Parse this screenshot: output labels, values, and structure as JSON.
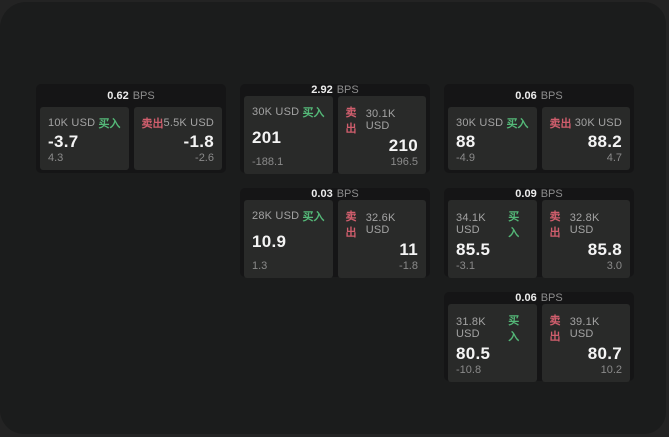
{
  "labels": {
    "bps_unit": "BPS",
    "buy": "买入",
    "sell": "卖出"
  },
  "colors": {
    "page": "#232323",
    "surface": "#1b1c1c",
    "card": "#151516",
    "cell": "#292a29",
    "buy_green": "#54b878",
    "sell_red": "#d05e6d"
  },
  "cards": [
    {
      "bps": "0.62",
      "buy": {
        "notional": "10K USD",
        "price": "-3.7",
        "change": "4.3"
      },
      "sell": {
        "notional": "5.5K USD",
        "price": "-1.8",
        "change": "-2.6"
      }
    },
    {
      "bps": "2.92",
      "buy": {
        "notional": "30K USD",
        "price": "201",
        "change": "-188.1"
      },
      "sell": {
        "notional": "30.1K USD",
        "price": "210",
        "change": "196.5"
      }
    },
    {
      "bps": "0.06",
      "buy": {
        "notional": "30K USD",
        "price": "88",
        "change": "-4.9"
      },
      "sell": {
        "notional": "30K USD",
        "price": "88.2",
        "change": "4.7"
      }
    },
    {
      "bps": "0.03",
      "buy": {
        "notional": "28K USD",
        "price": "10.9",
        "change": "1.3"
      },
      "sell": {
        "notional": "32.6K USD",
        "price": "11",
        "change": "-1.8"
      }
    },
    {
      "bps": "0.09",
      "buy": {
        "notional": "34.1K USD",
        "price": "85.5",
        "change": "-3.1"
      },
      "sell": {
        "notional": "32.8K USD",
        "price": "85.8",
        "change": "3.0"
      }
    },
    {
      "bps": "0.06",
      "buy": {
        "notional": "31.8K USD",
        "price": "80.5",
        "change": "-10.8"
      },
      "sell": {
        "notional": "39.1K USD",
        "price": "80.7",
        "change": "10.2"
      }
    }
  ]
}
